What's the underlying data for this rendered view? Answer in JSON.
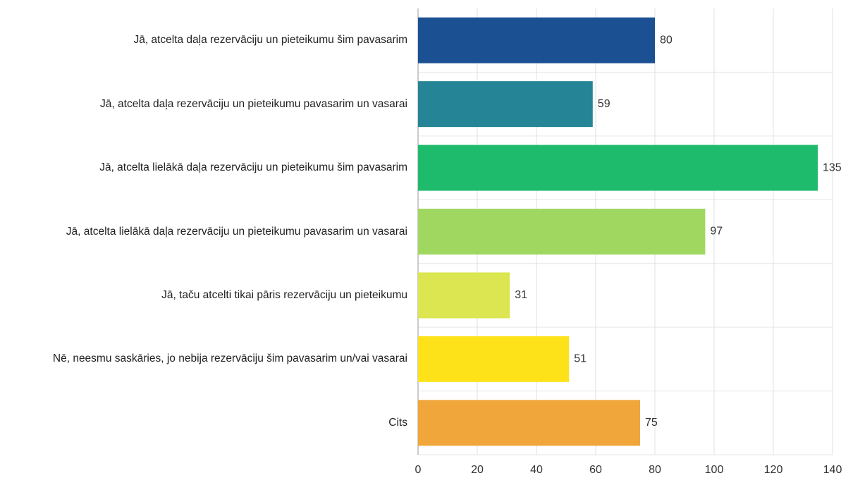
{
  "chart_data": {
    "type": "hbar",
    "categories": [
      "Jā, atcelta daļa rezervāciju un pieteikumu šim pavasarim",
      "Jā, atcelta daļa rezervāciju un pieteikumu pavasarim un vasarai",
      "Jā, atcelta lielākā daļa rezervāciju un pieteikumu šim pavasarim",
      "Jā, atcelta lielākā daļa rezervāciju un pieteikumu pavasarim un vasarai",
      "Jā, taču atcelti tikai pāris rezervāciju un pieteikumu",
      "Nē, neesmu saskāries, jo nebija rezervāciju šim pavasarim un/vai vasarai",
      "Cits"
    ],
    "values": [
      80,
      59,
      135,
      97,
      31,
      51,
      75
    ],
    "colors": [
      "#1b5193",
      "#258596",
      "#1fbb6c",
      "#9fd761",
      "#dbe651",
      "#fde21a",
      "#f0a63b"
    ],
    "xlim": [
      0,
      140
    ],
    "xticks": [
      0,
      20,
      40,
      60,
      80,
      100,
      120,
      140
    ],
    "grid": true
  }
}
